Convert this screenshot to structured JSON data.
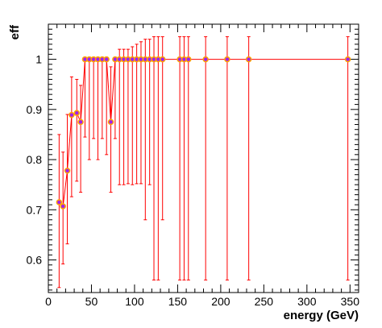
{
  "chart_data": {
    "type": "scatter",
    "title": "",
    "xlabel": "energy (GeV)",
    "ylabel": "eff",
    "xlim": [
      0,
      360
    ],
    "ylim": [
      0.535,
      1.07
    ],
    "grid": false,
    "x_ticks": [
      0,
      50,
      100,
      150,
      200,
      250,
      300,
      350
    ],
    "y_ticks": [
      0.6,
      0.7,
      0.8,
      0.9,
      1.0
    ],
    "y_tick_labels": [
      "0.6",
      "0.7",
      "0.8",
      "0.9",
      "1"
    ],
    "x_tick_labels": [
      "0",
      "50",
      "100",
      "150",
      "200",
      "250",
      "300",
      "350"
    ],
    "colors": {
      "line": "#ff0000",
      "marker_fill": "#a020f0",
      "marker_edge": "#ffa500"
    },
    "points": [
      {
        "x": 12.5,
        "y": 0.715,
        "lo": 0.545,
        "hi": 0.85
      },
      {
        "x": 17,
        "y": 0.707,
        "lo": 0.592,
        "hi": 0.815
      },
      {
        "x": 22,
        "y": 0.778,
        "lo": 0.632,
        "hi": 0.89
      },
      {
        "x": 27,
        "y": 0.889,
        "lo": 0.726,
        "hi": 0.965
      },
      {
        "x": 33,
        "y": 0.893,
        "lo": 0.757,
        "hi": 0.96
      },
      {
        "x": 37.5,
        "y": 0.875,
        "lo": 0.735,
        "hi": 0.948
      },
      {
        "x": 42.5,
        "y": 1.0,
        "lo": 0.845,
        "hi": 1.0
      },
      {
        "x": 47.5,
        "y": 1.0,
        "lo": 0.8,
        "hi": 1.0
      },
      {
        "x": 52.5,
        "y": 1.0,
        "lo": 0.842,
        "hi": 1.0
      },
      {
        "x": 57.5,
        "y": 1.0,
        "lo": 0.8,
        "hi": 1.0
      },
      {
        "x": 62.5,
        "y": 1.0,
        "lo": 0.842,
        "hi": 1.0
      },
      {
        "x": 67.5,
        "y": 1.0,
        "lo": 0.81,
        "hi": 1.0
      },
      {
        "x": 72.5,
        "y": 0.875,
        "lo": 0.735,
        "hi": 0.985
      },
      {
        "x": 77.5,
        "y": 1.0,
        "lo": 0.842,
        "hi": 1.0
      },
      {
        "x": 82.5,
        "y": 1.0,
        "lo": 0.75,
        "hi": 1.02
      },
      {
        "x": 87.5,
        "y": 1.0,
        "lo": 0.75,
        "hi": 1.02
      },
      {
        "x": 92.5,
        "y": 1.0,
        "lo": 0.752,
        "hi": 1.02
      },
      {
        "x": 97.5,
        "y": 1.0,
        "lo": 0.75,
        "hi": 1.025
      },
      {
        "x": 102.5,
        "y": 1.0,
        "lo": 0.752,
        "hi": 1.03
      },
      {
        "x": 107.5,
        "y": 1.0,
        "lo": 0.752,
        "hi": 1.035
      },
      {
        "x": 112.5,
        "y": 1.0,
        "lo": 0.68,
        "hi": 1.04
      },
      {
        "x": 117.5,
        "y": 1.0,
        "lo": 0.75,
        "hi": 1.04
      },
      {
        "x": 122.5,
        "y": 1.0,
        "lo": 0.56,
        "hi": 1.045
      },
      {
        "x": 127.5,
        "y": 1.0,
        "lo": 0.56,
        "hi": 1.045
      },
      {
        "x": 132.5,
        "y": 1.0,
        "lo": 0.68,
        "hi": 1.045
      },
      {
        "x": 152.5,
        "y": 1.0,
        "lo": 0.56,
        "hi": 1.045
      },
      {
        "x": 157.5,
        "y": 1.0,
        "lo": 0.56,
        "hi": 1.045
      },
      {
        "x": 162.5,
        "y": 1.0,
        "lo": 0.56,
        "hi": 1.045
      },
      {
        "x": 182.5,
        "y": 1.0,
        "lo": 0.56,
        "hi": 1.045
      },
      {
        "x": 207.5,
        "y": 1.0,
        "lo": 0.56,
        "hi": 1.045
      },
      {
        "x": 232.5,
        "y": 1.0,
        "lo": 0.56,
        "hi": 1.045
      },
      {
        "x": 347.5,
        "y": 1.0,
        "lo": 0.56,
        "hi": 1.045
      }
    ]
  }
}
